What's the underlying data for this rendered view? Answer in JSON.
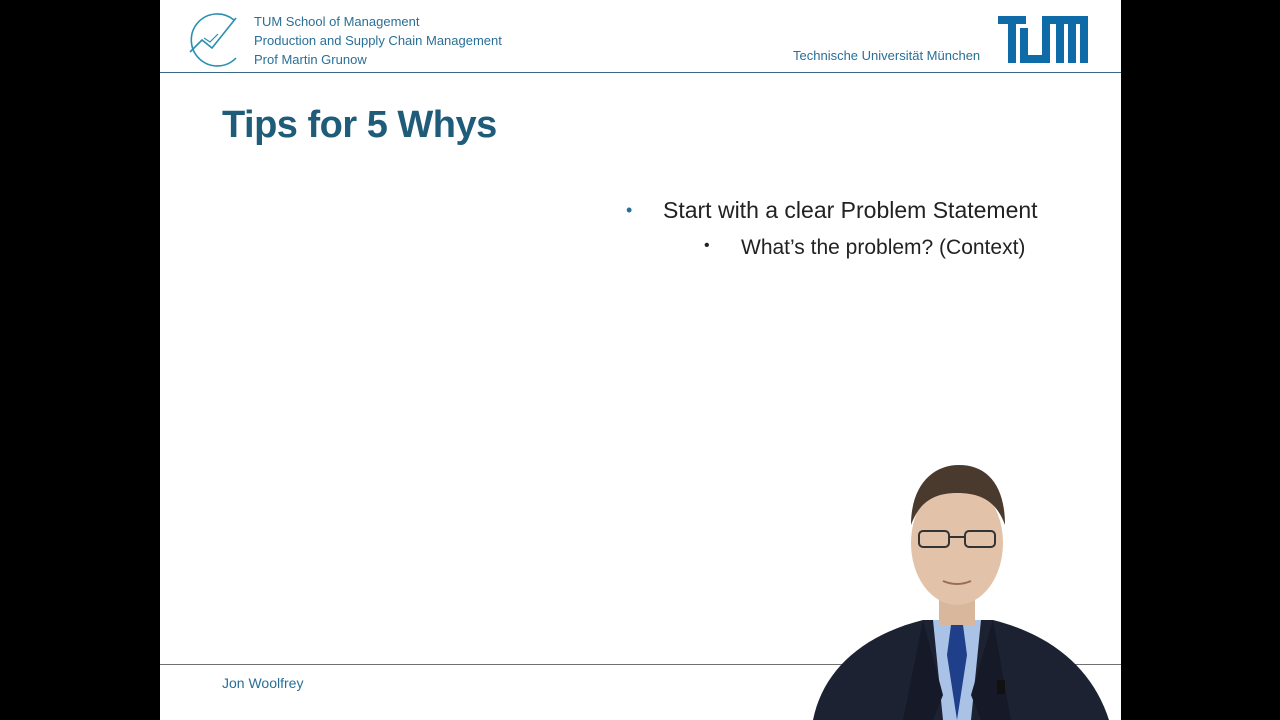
{
  "header": {
    "org_line_1": "TUM School of Management",
    "org_line_2": "Production and Supply Chain Management",
    "org_line_3": "Prof Martin Grunow",
    "university": "Technische Universität München"
  },
  "slide": {
    "title": "Tips for 5 Whys",
    "bullets": [
      {
        "text": "Start with a clear Problem Statement",
        "sub": [
          "What’s the problem? (Context)"
        ]
      }
    ]
  },
  "footer": {
    "presenter_name": "Jon Woolfrey"
  },
  "colors": {
    "accent": "#2a6f97",
    "title": "#1f5c7a",
    "background": "#ffffff",
    "frame": "#000000"
  },
  "icons": {
    "school_logo": "chart-line-logo-icon",
    "university_logo": "tum-logo-icon"
  }
}
